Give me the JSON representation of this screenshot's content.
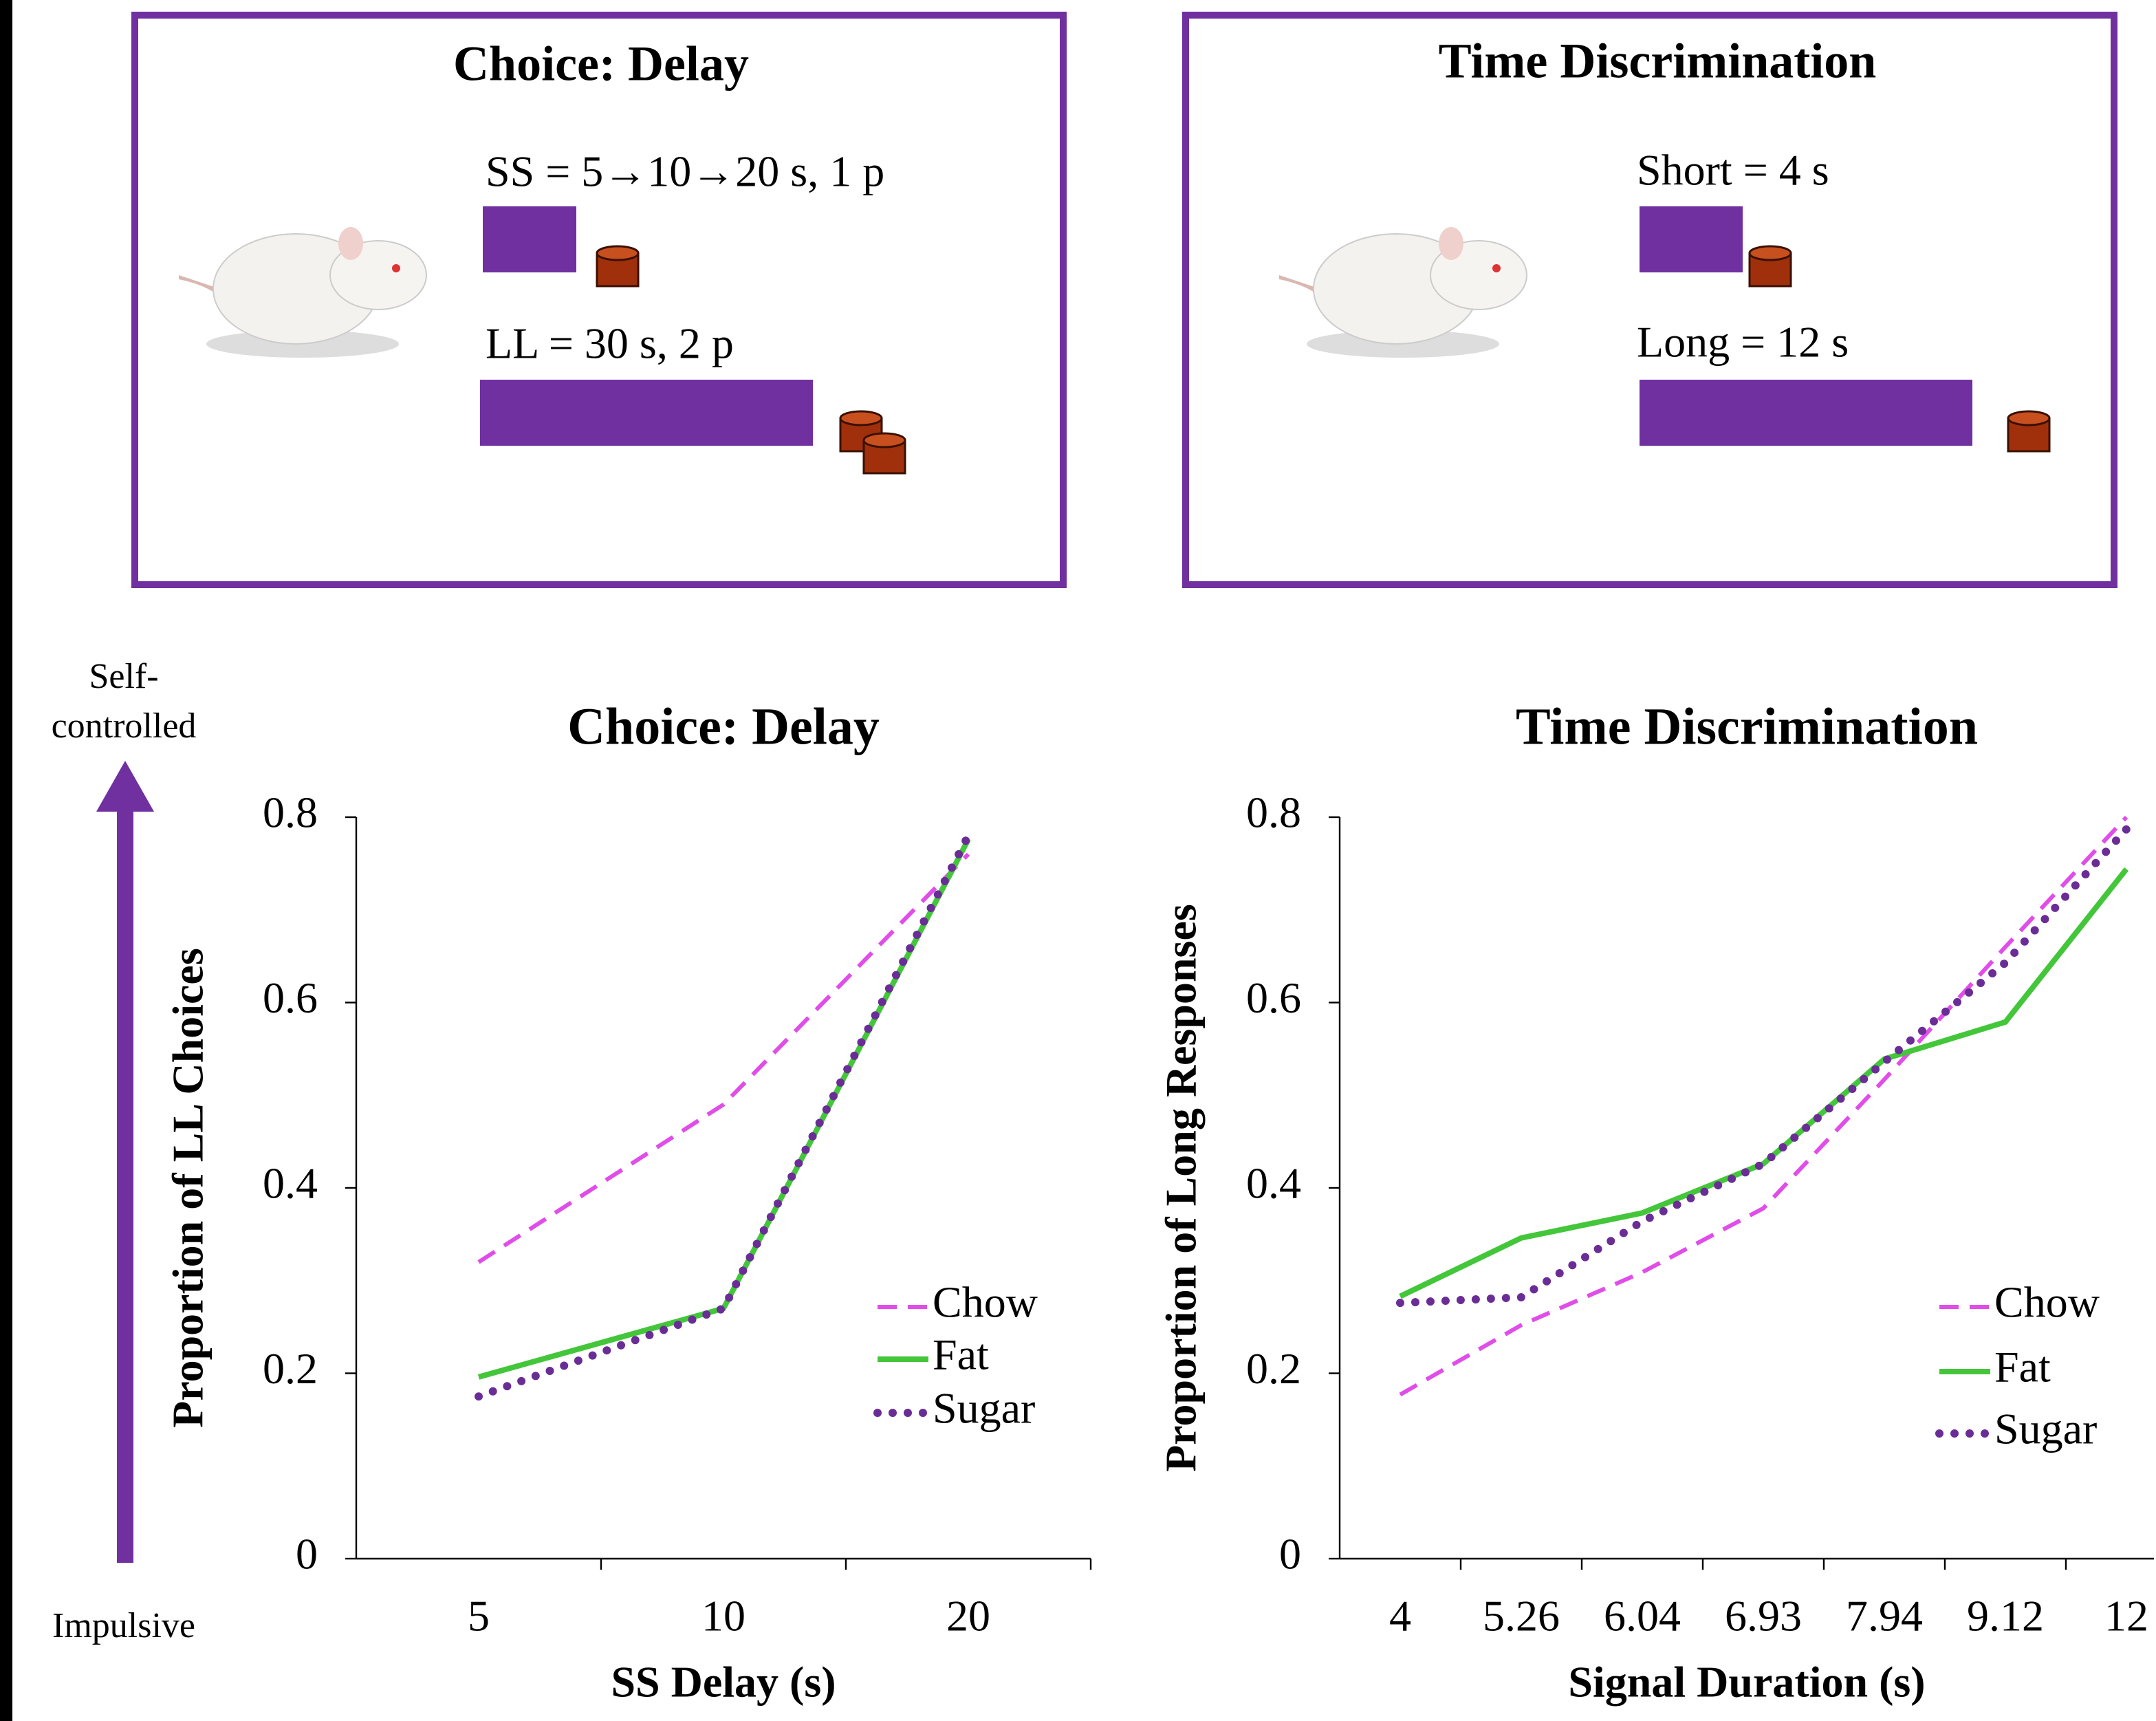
{
  "panels": [
    {
      "title": "Choice: Delay",
      "lines": [
        "SS = 5→10→20 s, 1 p",
        "LL = 30 s, 2 p"
      ]
    },
    {
      "title": "Time Discrimination",
      "lines": [
        "Short = 4 s",
        "Long = 12 s"
      ]
    }
  ],
  "arrow": {
    "top": [
      "Self-",
      "controlled"
    ],
    "bottom": "Impulsive"
  },
  "chart_data": [
    {
      "type": "line",
      "title": "Choice: Delay",
      "x_label": "SS Delay (s)",
      "y_label": "Proportion of LL Choices",
      "categories": [
        "5",
        "10",
        "20"
      ],
      "ylim": [
        0,
        0.8
      ],
      "yticks": [
        0,
        0.2,
        0.4,
        0.6,
        0.8
      ],
      "legend": "lower right",
      "series": [
        {
          "name": "Chow",
          "color": "#e04de8",
          "linestyle": "dashed",
          "values": [
            0.32,
            0.49,
            0.76
          ]
        },
        {
          "name": "Fat",
          "color": "#44c63b",
          "linestyle": "solid",
          "values": [
            0.196,
            0.27,
            0.776
          ]
        },
        {
          "name": "Sugar",
          "color": "#6a2d96",
          "linestyle": "dotted",
          "values": [
            0.175,
            0.27,
            0.78
          ]
        }
      ]
    },
    {
      "type": "line",
      "title": "Time Discrimination",
      "x_label": "Signal Duration (s)",
      "y_label": "Proportion of Long Responses",
      "categories": [
        "4",
        "5.26",
        "6.04",
        "6.93",
        "7.94",
        "9.12",
        "12"
      ],
      "ylim": [
        0,
        0.8
      ],
      "yticks": [
        0,
        0.2,
        0.4,
        0.6,
        0.8
      ],
      "legend": "lower right",
      "series": [
        {
          "name": "Chow",
          "color": "#e04de8",
          "linestyle": "dashed",
          "values": [
            0.177,
            0.252,
            0.309,
            0.378,
            0.517,
            0.66,
            0.8
          ]
        },
        {
          "name": "Fat",
          "color": "#44c63b",
          "linestyle": "solid",
          "values": [
            0.283,
            0.346,
            0.373,
            0.426,
            0.539,
            0.579,
            0.744
          ]
        },
        {
          "name": "Sugar",
          "color": "#6a2d96",
          "linestyle": "dotted",
          "values": [
            0.276,
            0.282,
            0.364,
            0.426,
            0.536,
            0.643,
            0.787
          ]
        }
      ]
    }
  ]
}
